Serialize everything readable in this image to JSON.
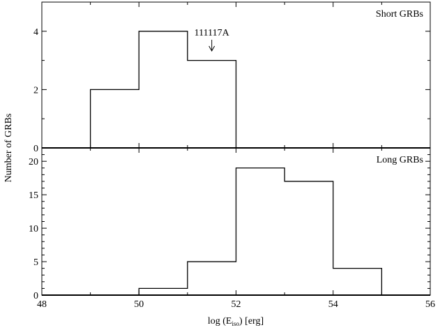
{
  "figure": {
    "ylabel": "Number of GRBs",
    "xlabel_prefix": "log (E",
    "xlabel_sub": "iso",
    "xlabel_suffix": ") [erg]"
  },
  "chart_data": [
    {
      "type": "bar",
      "panel": "top",
      "title": "Short GRBs",
      "bin_edges": [
        48,
        49,
        50,
        51,
        52,
        53,
        54,
        55,
        56
      ],
      "values": [
        0,
        2,
        4,
        3,
        0,
        0,
        0,
        0
      ],
      "xlim": [
        48,
        56
      ],
      "ylim": [
        0,
        5
      ],
      "xticks": [
        48,
        50,
        52,
        54,
        56
      ],
      "yticks": [
        0,
        2,
        4
      ],
      "yticks_minor": [
        1,
        3,
        5
      ],
      "annotation": {
        "text": "111117A",
        "x": 51.5,
        "arrow": "down"
      }
    },
    {
      "type": "bar",
      "panel": "bottom",
      "title": "Long GRBs",
      "bin_edges": [
        48,
        49,
        50,
        51,
        52,
        53,
        54,
        55,
        56
      ],
      "values": [
        0,
        0,
        1,
        5,
        19,
        17,
        4,
        0
      ],
      "xlim": [
        48,
        56
      ],
      "ylim": [
        0,
        22
      ],
      "xticks": [
        48,
        50,
        52,
        54,
        56
      ],
      "yticks": [
        0,
        5,
        10,
        15,
        20
      ]
    }
  ]
}
